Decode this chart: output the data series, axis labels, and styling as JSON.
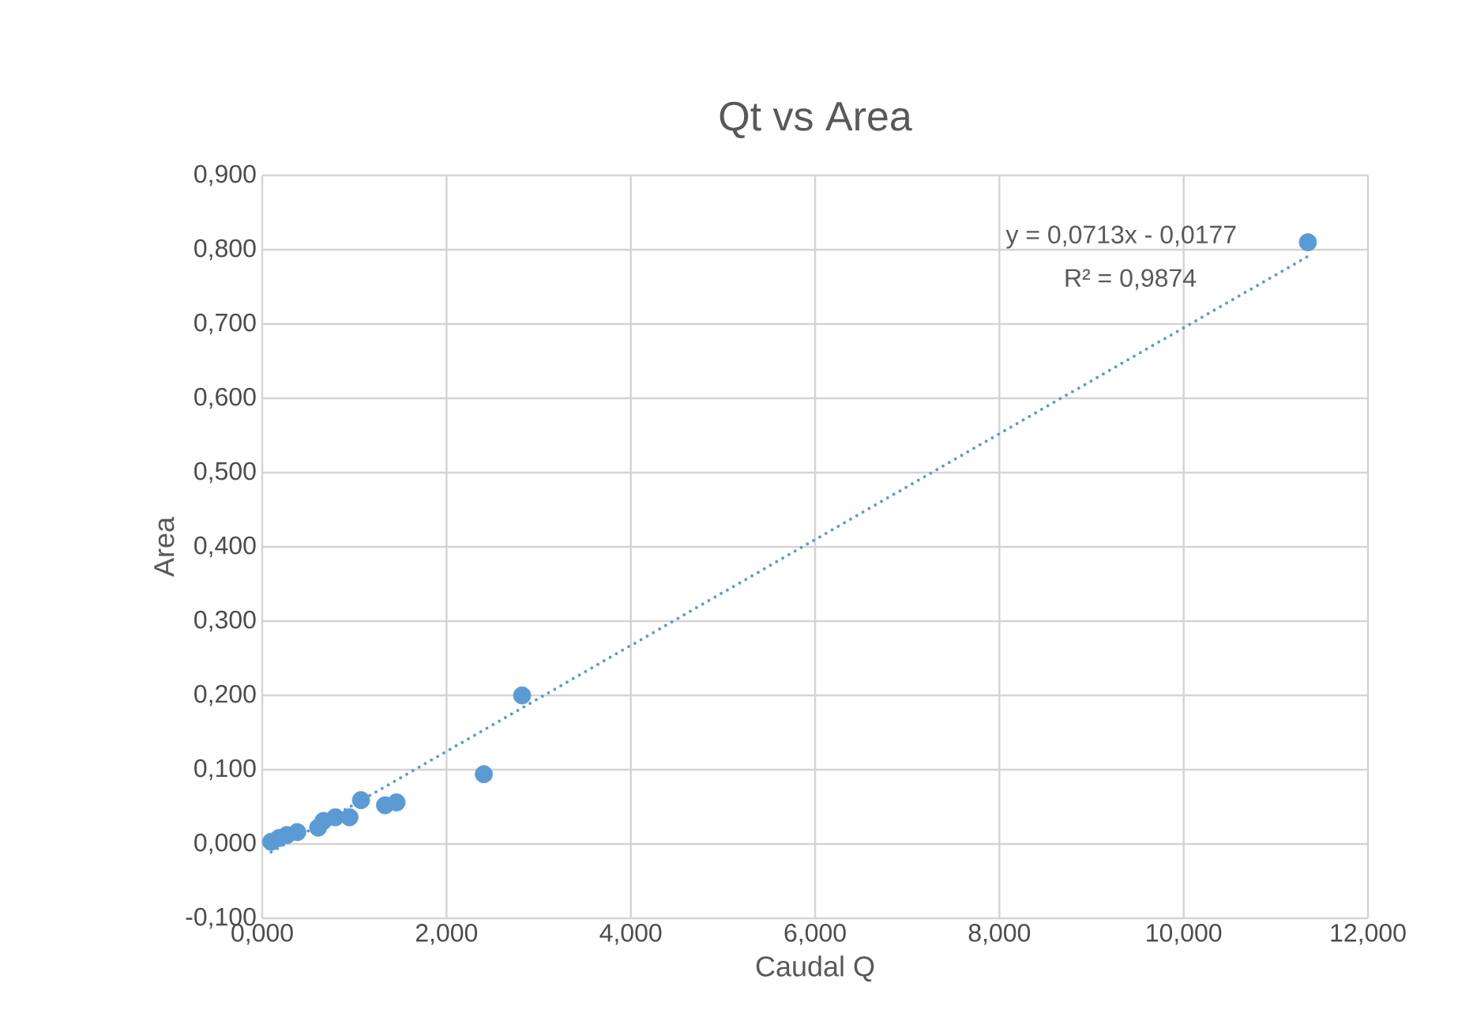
{
  "chart_data": {
    "type": "scatter",
    "title": "Qt vs Area",
    "xlabel": "Caudal Q",
    "ylabel": "Area",
    "series": [
      {
        "x": [
          0.097,
          0.182,
          0.267,
          0.38,
          0.607,
          0.664,
          0.794,
          0.947,
          1.072,
          1.333,
          1.458,
          2.405,
          2.82,
          11.348
        ],
        "values": [
          0.003,
          0.008,
          0.012,
          0.016,
          0.022,
          0.031,
          0.036,
          0.036,
          0.059,
          0.052,
          0.056,
          0.094,
          0.2,
          0.81
        ],
        "color": "#5b9bd5",
        "marker": "circle"
      },
      {
        "type": "line",
        "x": [
          0.097,
          11.348
        ],
        "values": [
          -0.011,
          0.791
        ],
        "color": "#5b9bd5",
        "marker": "none",
        "line_style": "dotted"
      }
    ],
    "xlim": [
      0,
      12
    ],
    "ylim": [
      -0.1,
      0.9
    ],
    "xticks": [
      {
        "value": 0,
        "label": "0,000"
      },
      {
        "value": 2,
        "label": "2,000"
      },
      {
        "value": 4,
        "label": "4,000"
      },
      {
        "value": 6,
        "label": "6,000"
      },
      {
        "value": 8,
        "label": "8,000"
      },
      {
        "value": 10,
        "label": "10,000"
      },
      {
        "value": 12,
        "label": "12,000"
      }
    ],
    "yticks": [
      {
        "value": -0.1,
        "label": "-0,100"
      },
      {
        "value": 0,
        "label": "0,000"
      },
      {
        "value": 0.1,
        "label": "0,100"
      },
      {
        "value": 0.2,
        "label": "0,200"
      },
      {
        "value": 0.3,
        "label": "0,300"
      },
      {
        "value": 0.4,
        "label": "0,400"
      },
      {
        "value": 0.5,
        "label": "0,500"
      },
      {
        "value": 0.6,
        "label": "0,600"
      },
      {
        "value": 0.7,
        "label": "0,700"
      },
      {
        "value": 0.8,
        "label": "0,800"
      },
      {
        "value": 0.9,
        "label": "0,900"
      }
    ],
    "grid": true,
    "annotations": [
      "y = 0,0713x - 0,0177",
      "R² = 0,9874"
    ]
  }
}
